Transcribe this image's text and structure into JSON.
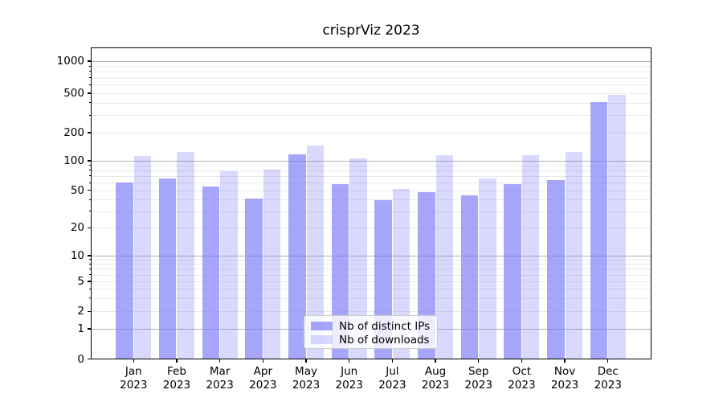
{
  "chart_data": {
    "type": "bar",
    "title": "crisprViz 2023",
    "x_categories": [
      "Jan",
      "Feb",
      "Mar",
      "Apr",
      "May",
      "Jun",
      "Jul",
      "Aug",
      "Sep",
      "Oct",
      "Nov",
      "Dec"
    ],
    "x_year": "2023",
    "series": [
      {
        "name": "Nb of distinct IPs",
        "base_color": "#8080f8",
        "alpha": 0.7,
        "values": [
          60,
          66,
          55,
          41,
          117,
          58,
          39,
          48,
          44,
          58,
          64,
          410
        ]
      },
      {
        "name": "Nb of downloads",
        "base_color": "#8080f8",
        "alpha": 0.3,
        "values": [
          112,
          125,
          78,
          81,
          145,
          107,
          52,
          115,
          66,
          115,
          125,
          485
        ]
      }
    ],
    "y_axis": {
      "scale": "symlog",
      "tick_values": [
        0,
        1,
        2,
        5,
        10,
        20,
        50,
        100,
        200,
        500,
        1000
      ],
      "tick_labels": [
        "0",
        "1",
        "2",
        "5",
        "10",
        "20",
        "50",
        "100",
        "200",
        "500",
        "1000"
      ],
      "major_grid_values": [
        1,
        10,
        100,
        1000
      ],
      "minor_grid_values": [
        2,
        3,
        4,
        5,
        6,
        7,
        8,
        9,
        20,
        30,
        40,
        50,
        60,
        70,
        80,
        90,
        200,
        300,
        400,
        500,
        600,
        700,
        800,
        900
      ],
      "ylim_top": 1400
    },
    "legend": {
      "position": "lower center",
      "items": [
        "Nb of distinct IPs",
        "Nb of downloads"
      ]
    },
    "colors": {
      "major_grid": "#b0b0b0",
      "minor_grid": "#e9e9e9",
      "axis": "#000000",
      "background": "#ffffff"
    }
  }
}
